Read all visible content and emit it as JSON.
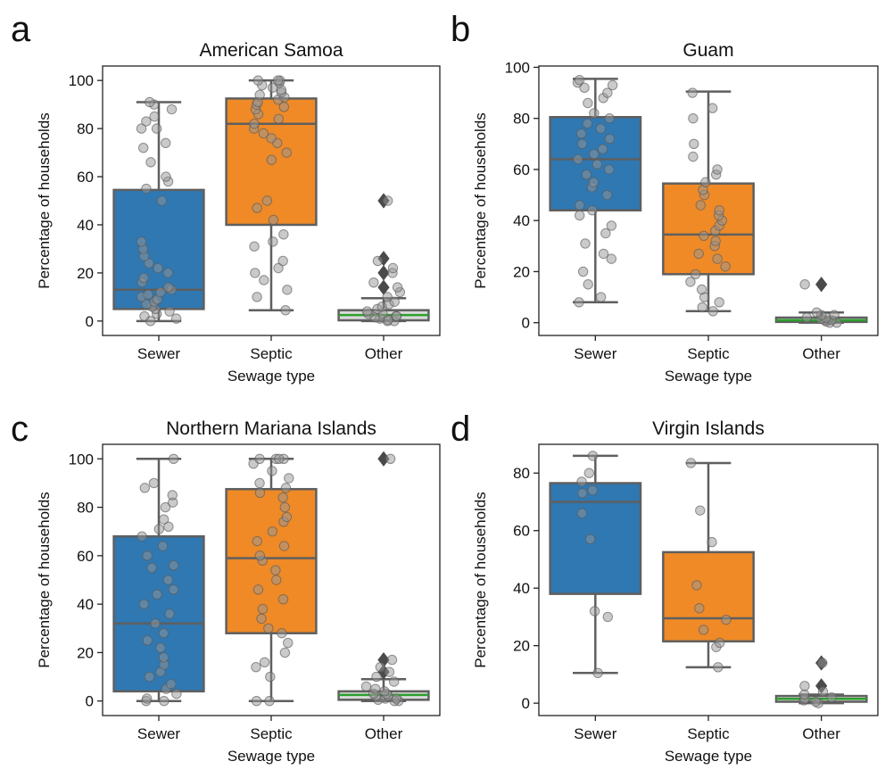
{
  "chart_data": [
    {
      "panel": "a",
      "type": "box",
      "title": "American Samoa",
      "xlabel": "Sewage type",
      "ylabel": "Percentage of households",
      "categories": [
        "Sewer",
        "Septic",
        "Other"
      ],
      "ylim": [
        -6,
        106
      ],
      "yticks": [
        0,
        20,
        40,
        60,
        80,
        100
      ],
      "colors": [
        "#2f78b2",
        "#ef8a26",
        "#d9d9d9"
      ],
      "boxes": [
        {
          "whisker_low": 0,
          "q1": 5,
          "median": 13,
          "q3": 54.5,
          "whisker_high": 91,
          "outliers": []
        },
        {
          "whisker_low": 4.5,
          "q1": 40,
          "median": 82,
          "q3": 92.5,
          "whisker_high": 100,
          "outliers": []
        },
        {
          "whisker_low": 0,
          "q1": 0.3,
          "median": 2.5,
          "q3": 4.5,
          "whisker_high": 9.5,
          "outliers": [
            14,
            20,
            26,
            50
          ]
        }
      ],
      "points": [
        [
          0,
          1,
          2,
          3,
          4,
          5,
          6,
          7,
          8,
          9,
          10,
          11,
          12,
          13,
          14,
          16,
          18,
          20,
          22,
          24,
          27,
          30,
          33,
          50,
          55,
          58,
          60,
          66,
          72,
          74,
          80,
          80,
          83,
          85,
          88,
          90,
          91
        ],
        [
          4.5,
          10,
          13,
          17,
          20,
          22,
          25,
          31,
          33,
          36,
          42,
          47,
          50,
          67,
          70,
          74,
          76,
          78,
          80,
          82,
          84,
          86,
          88,
          89,
          90,
          91,
          92,
          93,
          94,
          95,
          96,
          97,
          98,
          99,
          100,
          100,
          100
        ],
        [
          0,
          0,
          0.5,
          1,
          1.5,
          2,
          2,
          3,
          3,
          4,
          5,
          6,
          7,
          8,
          10,
          12,
          14,
          16,
          20,
          22,
          25,
          50
        ]
      ]
    },
    {
      "panel": "b",
      "type": "box",
      "title": "Guam",
      "xlabel": "Sewage type",
      "ylabel": "Percentage of households",
      "categories": [
        "Sewer",
        "Septic",
        "Other"
      ],
      "ylim": [
        -5,
        100.5
      ],
      "yticks": [
        0,
        20,
        40,
        60,
        80,
        100
      ],
      "colors": [
        "#2f78b2",
        "#ef8a26",
        "#d9d9d9"
      ],
      "boxes": [
        {
          "whisker_low": 8,
          "q1": 44,
          "median": 64,
          "q3": 80.5,
          "whisker_high": 95.5,
          "outliers": []
        },
        {
          "whisker_low": 4.5,
          "q1": 19,
          "median": 34.5,
          "q3": 54.5,
          "whisker_high": 90.5,
          "outliers": []
        },
        {
          "whisker_low": 0,
          "q1": 0.3,
          "median": 1,
          "q3": 2,
          "whisker_high": 4,
          "outliers": [
            15
          ]
        }
      ],
      "points": [
        [
          8,
          10,
          15,
          20,
          25,
          27,
          31,
          35,
          38,
          42,
          44,
          46,
          50,
          53,
          55,
          58,
          60,
          62,
          64,
          66,
          68,
          70,
          72,
          74,
          76,
          78,
          80,
          82,
          86,
          88,
          90,
          92,
          93,
          94,
          95
        ],
        [
          4.5,
          6,
          8,
          10,
          13,
          16,
          19,
          22,
          25,
          27,
          30,
          32,
          34,
          36,
          38,
          40,
          42,
          44,
          46,
          50,
          52,
          55,
          58,
          60,
          65,
          70,
          80,
          84,
          90
        ],
        [
          0,
          0,
          0.5,
          1,
          1,
          1.5,
          2,
          2,
          3,
          3,
          4,
          15
        ]
      ]
    },
    {
      "panel": "c",
      "type": "box",
      "title": "Northern Mariana Islands",
      "xlabel": "Sewage type",
      "ylabel": "Percentage of households",
      "categories": [
        "Sewer",
        "Septic",
        "Other"
      ],
      "ylim": [
        -6,
        106
      ],
      "yticks": [
        0,
        20,
        40,
        60,
        80,
        100
      ],
      "colors": [
        "#2f78b2",
        "#ef8a26",
        "#d9d9d9"
      ],
      "boxes": [
        {
          "whisker_low": 0,
          "q1": 4,
          "median": 32,
          "q3": 68,
          "whisker_high": 100,
          "outliers": []
        },
        {
          "whisker_low": 0,
          "q1": 28,
          "median": 59,
          "q3": 87.5,
          "whisker_high": 100,
          "outliers": []
        },
        {
          "whisker_low": 0,
          "q1": 0.5,
          "median": 2.5,
          "q3": 4,
          "whisker_high": 9,
          "outliers": [
            12,
            17,
            100
          ]
        }
      ],
      "points": [
        [
          0,
          0,
          1,
          3,
          5,
          7,
          10,
          12,
          15,
          18,
          22,
          25,
          28,
          32,
          36,
          40,
          44,
          46,
          50,
          55,
          56,
          60,
          64,
          68,
          71,
          72,
          75,
          80,
          82,
          85,
          88,
          90,
          100
        ],
        [
          0,
          0,
          10,
          14,
          16,
          20,
          24,
          28,
          30,
          34,
          38,
          42,
          46,
          50,
          54,
          58,
          60,
          64,
          66,
          70,
          74,
          76,
          80,
          84,
          86,
          88,
          90,
          92,
          95,
          98,
          100,
          100,
          100,
          100
        ],
        [
          0,
          0,
          0.5,
          1,
          1,
          2,
          2,
          3,
          3,
          4,
          5,
          6,
          8,
          10,
          12,
          14,
          17,
          100
        ]
      ]
    },
    {
      "panel": "d",
      "type": "box",
      "title": "Virgin Islands",
      "xlabel": "Sewage type",
      "ylabel": "Percentage of households",
      "categories": [
        "Sewer",
        "Septic",
        "Other"
      ],
      "ylim": [
        -4.3,
        90
      ],
      "yticks": [
        0,
        20,
        40,
        60,
        80
      ],
      "colors": [
        "#2f78b2",
        "#ef8a26",
        "#d9d9d9"
      ],
      "boxes": [
        {
          "whisker_low": 10.5,
          "q1": 38,
          "median": 70,
          "q3": 76.5,
          "whisker_high": 86,
          "outliers": []
        },
        {
          "whisker_low": 12.5,
          "q1": 21.5,
          "median": 29.5,
          "q3": 52.5,
          "whisker_high": 83.5,
          "outliers": []
        },
        {
          "whisker_low": 0,
          "q1": 0.5,
          "median": 1.5,
          "q3": 2.5,
          "whisker_high": 3,
          "outliers": [
            6,
            14
          ]
        }
      ],
      "points": [
        [
          10.5,
          30,
          32,
          57,
          66,
          73,
          74,
          77,
          80,
          86
        ],
        [
          12.5,
          19.5,
          21,
          25.5,
          29,
          33,
          41,
          56,
          67,
          83.5
        ],
        [
          0,
          0.5,
          1,
          1.5,
          2,
          3,
          4,
          6,
          14
        ]
      ]
    }
  ]
}
